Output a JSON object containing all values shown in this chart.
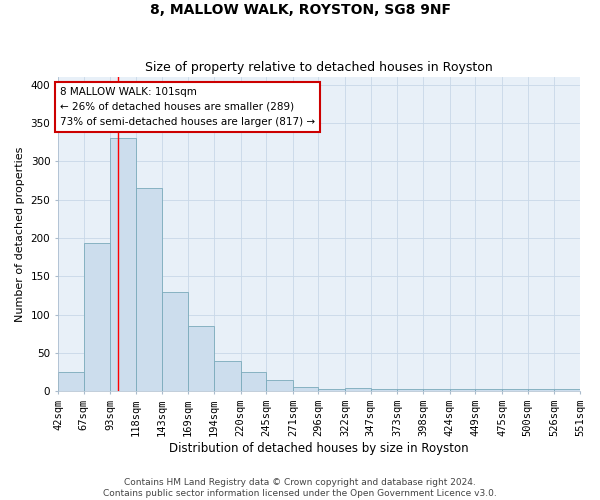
{
  "title": "8, MALLOW WALK, ROYSTON, SG8 9NF",
  "subtitle": "Size of property relative to detached houses in Royston",
  "xlabel": "Distribution of detached houses by size in Royston",
  "ylabel": "Number of detached properties",
  "bin_edges": [
    42,
    67,
    93,
    118,
    143,
    169,
    194,
    220,
    245,
    271,
    296,
    322,
    347,
    373,
    398,
    424,
    449,
    475,
    500,
    526,
    551
  ],
  "hist_values": [
    25,
    193,
    330,
    265,
    130,
    85,
    40,
    25,
    15,
    6,
    3,
    4,
    3,
    3,
    3,
    3,
    3,
    3,
    3,
    3
  ],
  "tick_labels": [
    "42sqm",
    "67sqm",
    "93sqm",
    "118sqm",
    "143sqm",
    "169sqm",
    "194sqm",
    "220sqm",
    "245sqm",
    "271sqm",
    "296sqm",
    "322sqm",
    "347sqm",
    "373sqm",
    "398sqm",
    "424sqm",
    "449sqm",
    "475sqm",
    "500sqm",
    "526sqm",
    "551sqm"
  ],
  "bar_color": "#ccdded",
  "bar_edge_color": "#7aaabb",
  "red_line_x": 101,
  "annotation_text": "8 MALLOW WALK: 101sqm\n← 26% of detached houses are smaller (289)\n73% of semi-detached houses are larger (817) →",
  "annotation_box_color": "#ffffff",
  "annotation_box_edge": "#cc0000",
  "ylim": [
    0,
    410
  ],
  "yticks": [
    0,
    50,
    100,
    150,
    200,
    250,
    300,
    350,
    400
  ],
  "grid_color": "#c8d8e8",
  "background_color": "#e8f0f8",
  "footer_text": "Contains HM Land Registry data © Crown copyright and database right 2024.\nContains public sector information licensed under the Open Government Licence v3.0.",
  "title_fontsize": 10,
  "subtitle_fontsize": 9,
  "xlabel_fontsize": 8.5,
  "ylabel_fontsize": 8,
  "tick_fontsize": 7.5,
  "annotation_fontsize": 7.5,
  "footer_fontsize": 6.5
}
